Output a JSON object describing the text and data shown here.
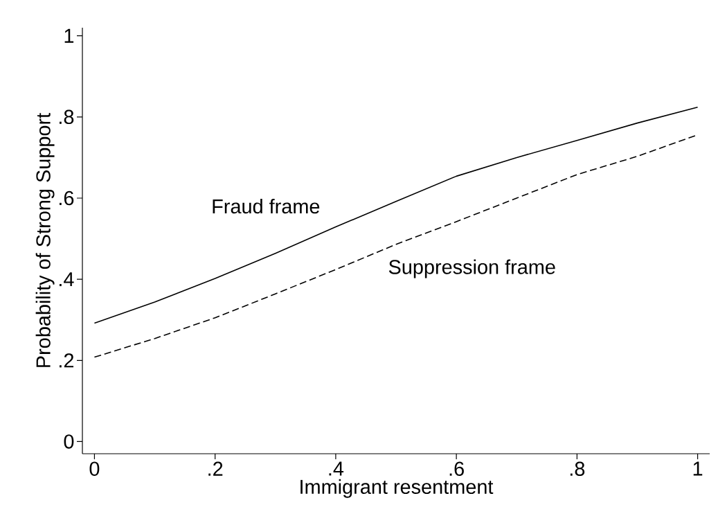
{
  "chart_data": {
    "type": "line",
    "xlabel": "Immigrant resentment",
    "ylabel": "Probability of Strong Support",
    "x": [
      0,
      0.1,
      0.2,
      0.3,
      0.4,
      0.5,
      0.6,
      0.7,
      0.8,
      0.9,
      1
    ],
    "series": [
      {
        "name": "Fraud frame",
        "color": "#000000",
        "line_style": "solid",
        "values": [
          0.292,
          0.344,
          0.402,
          0.464,
          0.529,
          0.592,
          0.654,
          0.7,
          0.742,
          0.785,
          0.824
        ]
      },
      {
        "name": "Suppression frame",
        "color": "#000000",
        "line_style": "dashed",
        "values": [
          0.208,
          0.254,
          0.305,
          0.364,
          0.424,
          0.486,
          0.542,
          0.6,
          0.658,
          0.703,
          0.756
        ]
      }
    ],
    "xlim": [
      -0.02,
      1.02
    ],
    "ylim": [
      -0.03,
      1.02
    ],
    "xticks": [
      0,
      {
        "value": 0.2,
        "label": ".2"
      },
      {
        "value": 0.4,
        "label": ".4"
      },
      {
        "value": 0.6,
        "label": ".6"
      },
      {
        "value": 0.8,
        "label": ".8"
      },
      1
    ],
    "yticks": [
      0,
      {
        "value": 0.2,
        "label": ".2"
      },
      {
        "value": 0.4,
        "label": ".4"
      },
      {
        "value": 0.6,
        "label": ".6"
      },
      {
        "value": 0.8,
        "label": ".8"
      },
      1
    ],
    "grid": false,
    "marker": "none"
  }
}
